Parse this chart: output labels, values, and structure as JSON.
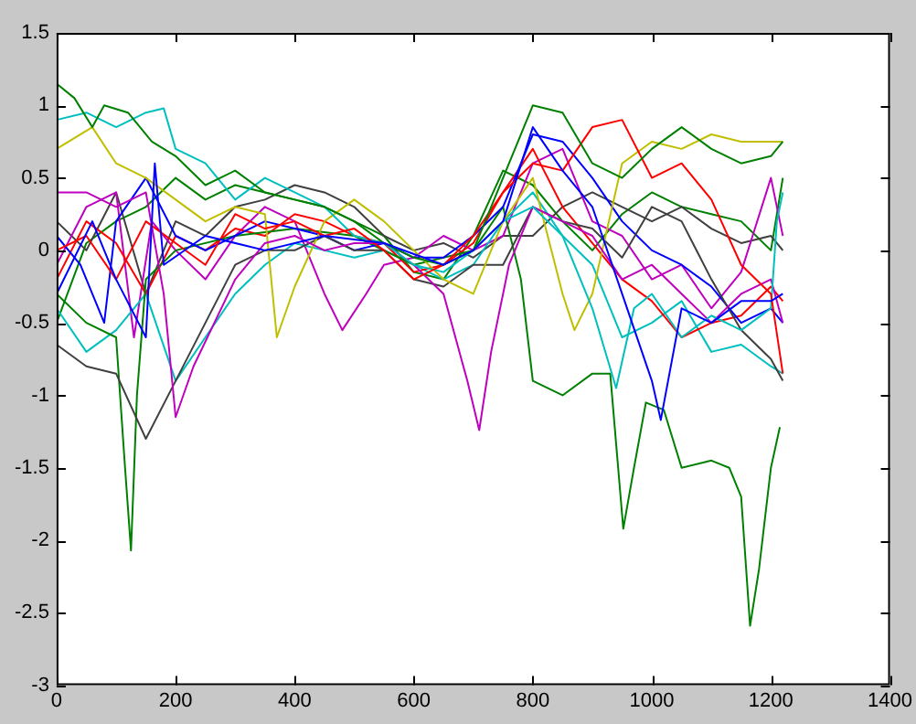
{
  "chart_data": {
    "type": "line",
    "xlim": [
      0,
      1400
    ],
    "xticks": [
      0,
      200,
      400,
      600,
      800,
      1000,
      1200,
      1400
    ],
    "ylim": [
      -3,
      1.5
    ],
    "yticks": [
      -3,
      -2.5,
      -2,
      -1.5,
      -1,
      -0.5,
      0,
      0.5,
      1,
      1.5
    ],
    "grid": false,
    "legend": false,
    "series": [
      {
        "color": "#0000ff",
        "x": [
          0,
          60,
          100,
          150,
          165,
          180,
          250,
          350,
          450,
          550,
          650,
          700,
          750,
          800,
          850,
          900,
          950,
          1000,
          1015,
          1050,
          1100,
          1150,
          1200,
          1220
        ],
        "values": [
          -0.3,
          0.2,
          -0.2,
          -0.6,
          0.6,
          -0.1,
          0.1,
          0,
          0.1,
          0.05,
          -0.1,
          0,
          0.2,
          0.85,
          0.55,
          0.3,
          -0.3,
          -0.9,
          -1.17,
          -0.4,
          -0.5,
          -0.35,
          -0.35,
          -0.3
        ]
      },
      {
        "color": "#008000",
        "x": [
          0,
          30,
          60,
          80,
          120,
          160,
          200,
          250,
          300,
          350,
          400,
          450,
          500,
          550,
          600,
          650,
          700,
          750,
          800,
          850,
          900,
          950,
          1000,
          1050,
          1100,
          1150,
          1200,
          1220
        ],
        "values": [
          1.15,
          1.05,
          0.85,
          1,
          0.95,
          0.75,
          0.65,
          0.45,
          0.55,
          0.4,
          0.35,
          0.3,
          0.2,
          0.05,
          -0.05,
          -0.1,
          0,
          0.5,
          1,
          0.95,
          0.6,
          0.5,
          0.7,
          0.85,
          0.7,
          0.6,
          0.65,
          0.75
        ]
      },
      {
        "color": "#ff0000",
        "x": [
          0,
          50,
          100,
          150,
          200,
          250,
          300,
          350,
          400,
          450,
          500,
          550,
          600,
          650,
          700,
          750,
          800,
          850,
          900,
          950,
          1000,
          1050,
          1100,
          1150,
          1200,
          1220
        ],
        "values": [
          0,
          0.1,
          -0.2,
          0.2,
          0.05,
          -0.1,
          0.25,
          0.15,
          0.2,
          0.1,
          0.15,
          0,
          -0.2,
          -0.1,
          0.1,
          0.4,
          0.6,
          0.55,
          0.85,
          0.9,
          0.5,
          0.6,
          0.35,
          -0.1,
          -0.3,
          -0.85
        ]
      },
      {
        "color": "#00bfbf",
        "x": [
          0,
          50,
          100,
          150,
          180,
          200,
          250,
          300,
          350,
          400,
          450,
          500,
          550,
          600,
          650,
          700,
          750,
          800,
          850,
          900,
          940,
          970,
          1000,
          1050,
          1100,
          1150,
          1200,
          1210,
          1220
        ],
        "values": [
          0.9,
          0.95,
          0.85,
          0.95,
          0.98,
          0.7,
          0.6,
          0.35,
          0.5,
          0.4,
          0.3,
          0.1,
          0.05,
          -0.1,
          -0.15,
          0,
          0.2,
          0.3,
          0.1,
          -0.4,
          -0.95,
          -0.4,
          -0.3,
          -0.6,
          -0.45,
          -0.55,
          -0.4,
          0.2,
          0.4
        ]
      },
      {
        "color": "#bf00bf",
        "x": [
          0,
          50,
          100,
          150,
          180,
          200,
          230,
          300,
          350,
          400,
          450,
          500,
          550,
          600,
          650,
          690,
          710,
          730,
          760,
          800,
          850,
          900,
          950,
          1000,
          1050,
          1100,
          1150,
          1200,
          1220
        ],
        "values": [
          0.4,
          0.4,
          0.3,
          0.4,
          -0.3,
          -1.15,
          -0.8,
          -0.2,
          0.05,
          0.1,
          0,
          0.05,
          0.05,
          -0.1,
          -0.3,
          -0.9,
          -1.24,
          -0.7,
          -0.1,
          0.3,
          0.2,
          0.1,
          -0.2,
          -0.1,
          -0.3,
          -0.5,
          -0.3,
          -0.2,
          -0.5
        ]
      },
      {
        "color": "#bfbf00",
        "x": [
          0,
          60,
          100,
          150,
          200,
          250,
          300,
          350,
          370,
          400,
          450,
          500,
          550,
          600,
          650,
          700,
          750,
          800,
          850,
          870,
          900,
          950,
          1000,
          1050,
          1100,
          1150,
          1220
        ],
        "values": [
          0.7,
          0.85,
          0.6,
          0.5,
          0.35,
          0.2,
          0.3,
          0.25,
          -0.6,
          -0.25,
          0.2,
          0.35,
          0.2,
          0,
          -0.2,
          -0.3,
          0.2,
          0.5,
          -0.3,
          -0.55,
          -0.3,
          0.6,
          0.75,
          0.7,
          0.8,
          0.75,
          0.75
        ]
      },
      {
        "color": "#404040",
        "x": [
          0,
          50,
          100,
          150,
          200,
          250,
          300,
          350,
          400,
          450,
          500,
          550,
          600,
          650,
          700,
          750,
          800,
          850,
          900,
          950,
          1000,
          1050,
          1100,
          1150,
          1200,
          1220
        ],
        "values": [
          -0.65,
          -0.8,
          -0.85,
          -1.3,
          -0.9,
          -0.5,
          -0.1,
          0,
          0,
          0.1,
          0,
          0,
          -0.2,
          -0.25,
          -0.1,
          -0.1,
          0.3,
          0.2,
          0.15,
          -0.05,
          0.3,
          0.2,
          -0.2,
          -0.55,
          -0.75,
          -0.9
        ]
      },
      {
        "color": "#0000ff",
        "x": [
          0,
          40,
          80,
          100,
          150,
          200,
          250,
          300,
          350,
          400,
          450,
          500,
          550,
          600,
          650,
          700,
          750,
          800,
          850,
          900,
          950,
          1000,
          1050,
          1100,
          1150,
          1200,
          1220
        ],
        "values": [
          0.1,
          -0.1,
          -0.5,
          0.2,
          0.5,
          0.1,
          0,
          0.1,
          0.2,
          0.15,
          0.1,
          0,
          0.05,
          -0.05,
          -0.05,
          0.1,
          0.3,
          0.8,
          0.75,
          0.5,
          0.2,
          0,
          -0.1,
          -0.25,
          -0.5,
          -0.4,
          -0.5
        ]
      },
      {
        "color": "#008000",
        "x": [
          0,
          50,
          100,
          115,
          125,
          135,
          150,
          200,
          300,
          400,
          500,
          600,
          700,
          750,
          780,
          800,
          850,
          900,
          930,
          952,
          970,
          990,
          1020,
          1050,
          1100,
          1130,
          1150,
          1165,
          1180,
          1200,
          1215
        ],
        "values": [
          -0.3,
          -0.5,
          -0.6,
          -1.5,
          -2.07,
          -1,
          -0.2,
          0,
          0.1,
          0.15,
          0.1,
          -0.1,
          0,
          0.3,
          -0.2,
          -0.9,
          -1,
          -0.85,
          -0.85,
          -1.92,
          -1.5,
          -1.05,
          -1.1,
          -1.5,
          -1.45,
          -1.5,
          -1.7,
          -2.59,
          -2.2,
          -1.5,
          -1.22
        ]
      },
      {
        "color": "#ff0000",
        "x": [
          0,
          50,
          100,
          150,
          200,
          250,
          300,
          350,
          400,
          450,
          500,
          550,
          600,
          650,
          700,
          750,
          800,
          850,
          900,
          950,
          1000,
          1050,
          1100,
          1150,
          1200,
          1220
        ],
        "values": [
          -0.2,
          0.2,
          0.05,
          -0.3,
          0.1,
          0,
          0.15,
          0.1,
          0.25,
          0.2,
          0.1,
          0.05,
          -0.15,
          -0.1,
          0.05,
          0.4,
          0.7,
          0.3,
          0.05,
          -0.2,
          -0.35,
          -0.6,
          -0.5,
          -0.45,
          -0.25,
          -0.35
        ]
      },
      {
        "color": "#00bfbf",
        "x": [
          0,
          50,
          100,
          150,
          200,
          250,
          300,
          350,
          400,
          450,
          500,
          550,
          600,
          650,
          700,
          750,
          800,
          850,
          900,
          950,
          1000,
          1050,
          1100,
          1150,
          1200,
          1220
        ],
        "values": [
          -0.4,
          -0.7,
          -0.55,
          -0.3,
          -0.9,
          -0.6,
          -0.3,
          -0.1,
          0.05,
          0,
          -0.05,
          0,
          -0.1,
          -0.2,
          -0.1,
          0.2,
          0.4,
          0.1,
          -0.1,
          -0.6,
          -0.5,
          -0.35,
          -0.7,
          -0.65,
          -0.8,
          -0.85
        ]
      },
      {
        "color": "#bf00bf",
        "x": [
          0,
          50,
          100,
          130,
          160,
          200,
          250,
          300,
          350,
          400,
          450,
          480,
          520,
          550,
          600,
          650,
          700,
          750,
          800,
          850,
          900,
          950,
          1000,
          1050,
          1100,
          1150,
          1200,
          1220
        ],
        "values": [
          -0.1,
          0.3,
          0.4,
          -0.6,
          0.2,
          0,
          -0.2,
          0.1,
          0.3,
          0.2,
          -0.3,
          -0.55,
          -0.3,
          -0.1,
          -0.05,
          0.1,
          0,
          0.1,
          0.6,
          0.7,
          0.2,
          0.1,
          -0.2,
          -0.1,
          -0.4,
          -0.15,
          0.5,
          0.1
        ]
      },
      {
        "color": "#404040",
        "x": [
          0,
          50,
          100,
          150,
          200,
          250,
          300,
          350,
          400,
          450,
          500,
          550,
          600,
          650,
          700,
          750,
          800,
          850,
          900,
          950,
          1000,
          1050,
          1100,
          1150,
          1200,
          1220
        ],
        "values": [
          0.2,
          0,
          0.4,
          -0.3,
          0.2,
          0.1,
          0.3,
          0.35,
          0.45,
          0.4,
          0.3,
          0.1,
          0,
          0.05,
          -0.05,
          0.1,
          0.1,
          0.3,
          0.4,
          0.3,
          0.2,
          0.3,
          0.15,
          0.05,
          0.1,
          0
        ]
      },
      {
        "color": "#008000",
        "x": [
          0,
          50,
          100,
          150,
          200,
          250,
          300,
          350,
          400,
          450,
          500,
          550,
          600,
          650,
          700,
          750,
          800,
          850,
          900,
          950,
          1000,
          1050,
          1100,
          1150,
          1200,
          1220
        ],
        "values": [
          -0.5,
          0.05,
          0.2,
          0.3,
          0.5,
          0.35,
          0.45,
          0.4,
          0.35,
          0.3,
          0.2,
          0.1,
          -0.15,
          -0.2,
          0.1,
          0.55,
          0.45,
          0.2,
          0,
          0.25,
          0.4,
          0.3,
          0.25,
          0.2,
          0,
          0.5
        ]
      }
    ]
  }
}
